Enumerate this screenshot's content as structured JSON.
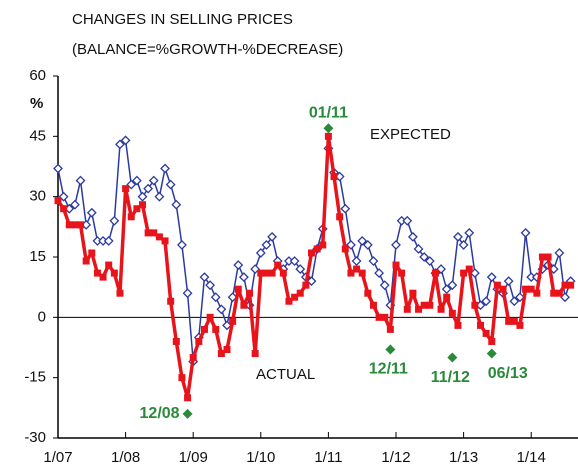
{
  "chart_data": {
    "type": "line",
    "title": "CHANGES IN SELLING PRICES",
    "subtitle": "(BALANCE=%GROWTH-%DECREASE)",
    "y_label": "%",
    "categories": [
      "1/07",
      null,
      null,
      null,
      null,
      null,
      null,
      null,
      null,
      null,
      null,
      null,
      "1/08",
      null,
      null,
      null,
      null,
      null,
      null,
      null,
      null,
      null,
      null,
      null,
      "1/09",
      null,
      null,
      null,
      null,
      null,
      null,
      null,
      null,
      null,
      null,
      null,
      "1/10",
      null,
      null,
      null,
      null,
      null,
      null,
      null,
      null,
      null,
      null,
      null,
      "1/11",
      null,
      null,
      null,
      null,
      null,
      null,
      null,
      null,
      null,
      null,
      null,
      "1/12",
      null,
      null,
      null,
      null,
      null,
      null,
      null,
      null,
      null,
      null,
      null,
      "1/13",
      null,
      null,
      null,
      null,
      null,
      null,
      null,
      null,
      null,
      null,
      null,
      "1/14",
      null,
      null,
      null,
      null,
      null,
      null,
      null
    ],
    "series": [
      {
        "name": "EXPECTED",
        "color": "#2b3a9e",
        "values": [
          37,
          30,
          27,
          28,
          34,
          23,
          26,
          19,
          19,
          19,
          24,
          43,
          44,
          33,
          34,
          30,
          32,
          34,
          30,
          37,
          33,
          28,
          18,
          6,
          -11,
          -5,
          10,
          8,
          5,
          2,
          -2,
          5,
          13,
          10,
          3,
          12,
          16,
          18,
          20,
          14,
          12,
          14,
          14,
          12,
          10,
          9,
          17,
          22,
          42,
          36,
          35,
          27,
          18,
          14,
          19,
          18,
          14,
          11,
          8,
          3,
          18,
          24,
          24,
          20,
          17,
          15,
          14,
          11,
          12,
          7,
          8,
          20,
          18,
          21,
          11,
          3,
          4,
          10,
          7,
          6,
          9,
          4,
          5,
          21,
          10,
          10,
          12,
          13,
          12,
          16,
          5,
          9
        ]
      },
      {
        "name": "ACTUAL",
        "color": "#e8141b",
        "values": [
          29,
          27,
          23,
          23,
          23,
          14,
          16,
          11,
          10,
          13,
          11,
          6,
          32,
          25,
          27,
          28,
          21,
          21,
          20,
          19,
          4,
          -6,
          -15,
          -20,
          -10,
          -6,
          -3,
          0,
          -3,
          -9,
          -8,
          -1,
          7,
          3,
          6,
          -9,
          11,
          11,
          11,
          13,
          11,
          4,
          5,
          6,
          8,
          16,
          17,
          18,
          45,
          35,
          25,
          17,
          11,
          12,
          11,
          6,
          3,
          0,
          0,
          -3,
          13,
          11,
          2,
          6,
          2,
          3,
          3,
          11,
          2,
          5,
          1,
          -2,
          11,
          12,
          3,
          -2,
          -4,
          -6,
          8,
          7,
          -1,
          -1,
          -2,
          7,
          7,
          6,
          15,
          15,
          6,
          6,
          8,
          8
        ]
      }
    ],
    "annotations": [
      {
        "text": "01/11",
        "value": 47
      },
      {
        "text": "12/08",
        "value": -24
      },
      {
        "text": "12/11",
        "value": -8
      },
      {
        "text": "11/12",
        "value": -10
      },
      {
        "text": "06/13",
        "value": -9
      }
    ],
    "annotation_color": "#2a8a3a",
    "ylim": [
      -30,
      60
    ],
    "yticks": [
      -30,
      -15,
      0,
      15,
      30,
      45,
      60
    ]
  }
}
